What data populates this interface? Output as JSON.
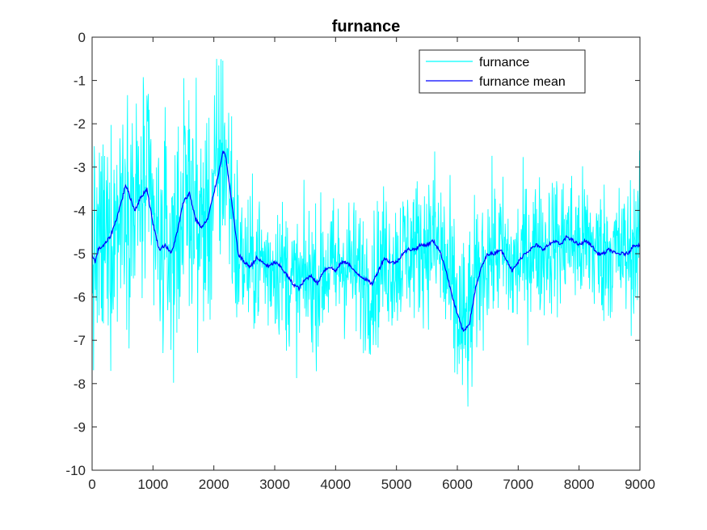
{
  "chart_data": {
    "type": "line",
    "title": "furnance",
    "xlabel": "",
    "ylabel": "",
    "xlim": [
      0,
      9000
    ],
    "ylim": [
      -10,
      0
    ],
    "xticks": [
      0,
      1000,
      2000,
      3000,
      4000,
      5000,
      6000,
      7000,
      8000,
      9000
    ],
    "yticks": [
      0,
      -1,
      -2,
      -3,
      -4,
      -5,
      -6,
      -7,
      -8,
      -9,
      -10
    ],
    "grid": false,
    "legend_position": "top-right",
    "colors": {
      "furnance": "#00ffff",
      "furnance mean": "#0000ff"
    },
    "series": [
      {
        "name": "furnance",
        "color": "#00ffff",
        "style": "noisy line, approx. 9000 samples; values oscillate roughly ±1.5 around the mean, with extremes from about -9.2 to -0.5"
      },
      {
        "name": "furnance mean",
        "color": "#0000ff",
        "x": [
          0,
          50,
          100,
          200,
          300,
          400,
          500,
          550,
          600,
          700,
          800,
          900,
          1000,
          1100,
          1200,
          1300,
          1400,
          1500,
          1600,
          1700,
          1800,
          1900,
          2000,
          2100,
          2150,
          2200,
          2300,
          2400,
          2500,
          2600,
          2700,
          2800,
          2900,
          3000,
          3100,
          3200,
          3300,
          3400,
          3500,
          3600,
          3700,
          3800,
          3900,
          4000,
          4100,
          4200,
          4300,
          4400,
          4500,
          4600,
          4700,
          4800,
          4900,
          5000,
          5100,
          5200,
          5300,
          5400,
          5500,
          5600,
          5700,
          5800,
          5900,
          6000,
          6100,
          6200,
          6300,
          6400,
          6500,
          6600,
          6700,
          6800,
          6900,
          7000,
          7100,
          7200,
          7300,
          7400,
          7500,
          7600,
          7700,
          7800,
          7900,
          8000,
          8100,
          8200,
          8300,
          8400,
          8500,
          8600,
          8700,
          8800,
          8900,
          9000
        ],
        "y": [
          -5.0,
          -5.2,
          -4.9,
          -4.8,
          -4.6,
          -4.2,
          -3.7,
          -3.4,
          -3.6,
          -4.0,
          -3.7,
          -3.5,
          -4.3,
          -4.9,
          -4.8,
          -5.0,
          -4.5,
          -3.8,
          -3.6,
          -4.2,
          -4.4,
          -4.2,
          -3.6,
          -3.0,
          -2.6,
          -2.8,
          -3.9,
          -5.0,
          -5.2,
          -5.3,
          -5.1,
          -5.2,
          -5.3,
          -5.2,
          -5.3,
          -5.5,
          -5.7,
          -5.8,
          -5.6,
          -5.5,
          -5.7,
          -5.4,
          -5.3,
          -5.4,
          -5.2,
          -5.2,
          -5.4,
          -5.5,
          -5.6,
          -5.7,
          -5.4,
          -5.1,
          -5.2,
          -5.2,
          -5.0,
          -4.9,
          -4.9,
          -4.8,
          -4.8,
          -4.7,
          -4.9,
          -5.3,
          -5.9,
          -6.4,
          -6.8,
          -6.6,
          -5.8,
          -5.3,
          -5.0,
          -5.0,
          -4.9,
          -5.1,
          -5.4,
          -5.2,
          -5.0,
          -4.9,
          -4.8,
          -4.9,
          -4.8,
          -4.7,
          -4.8,
          -4.6,
          -4.7,
          -4.8,
          -4.7,
          -4.8,
          -5.0,
          -5.0,
          -4.9,
          -5.0,
          -5.0,
          -5.0,
          -4.8,
          -4.8
        ]
      }
    ]
  }
}
